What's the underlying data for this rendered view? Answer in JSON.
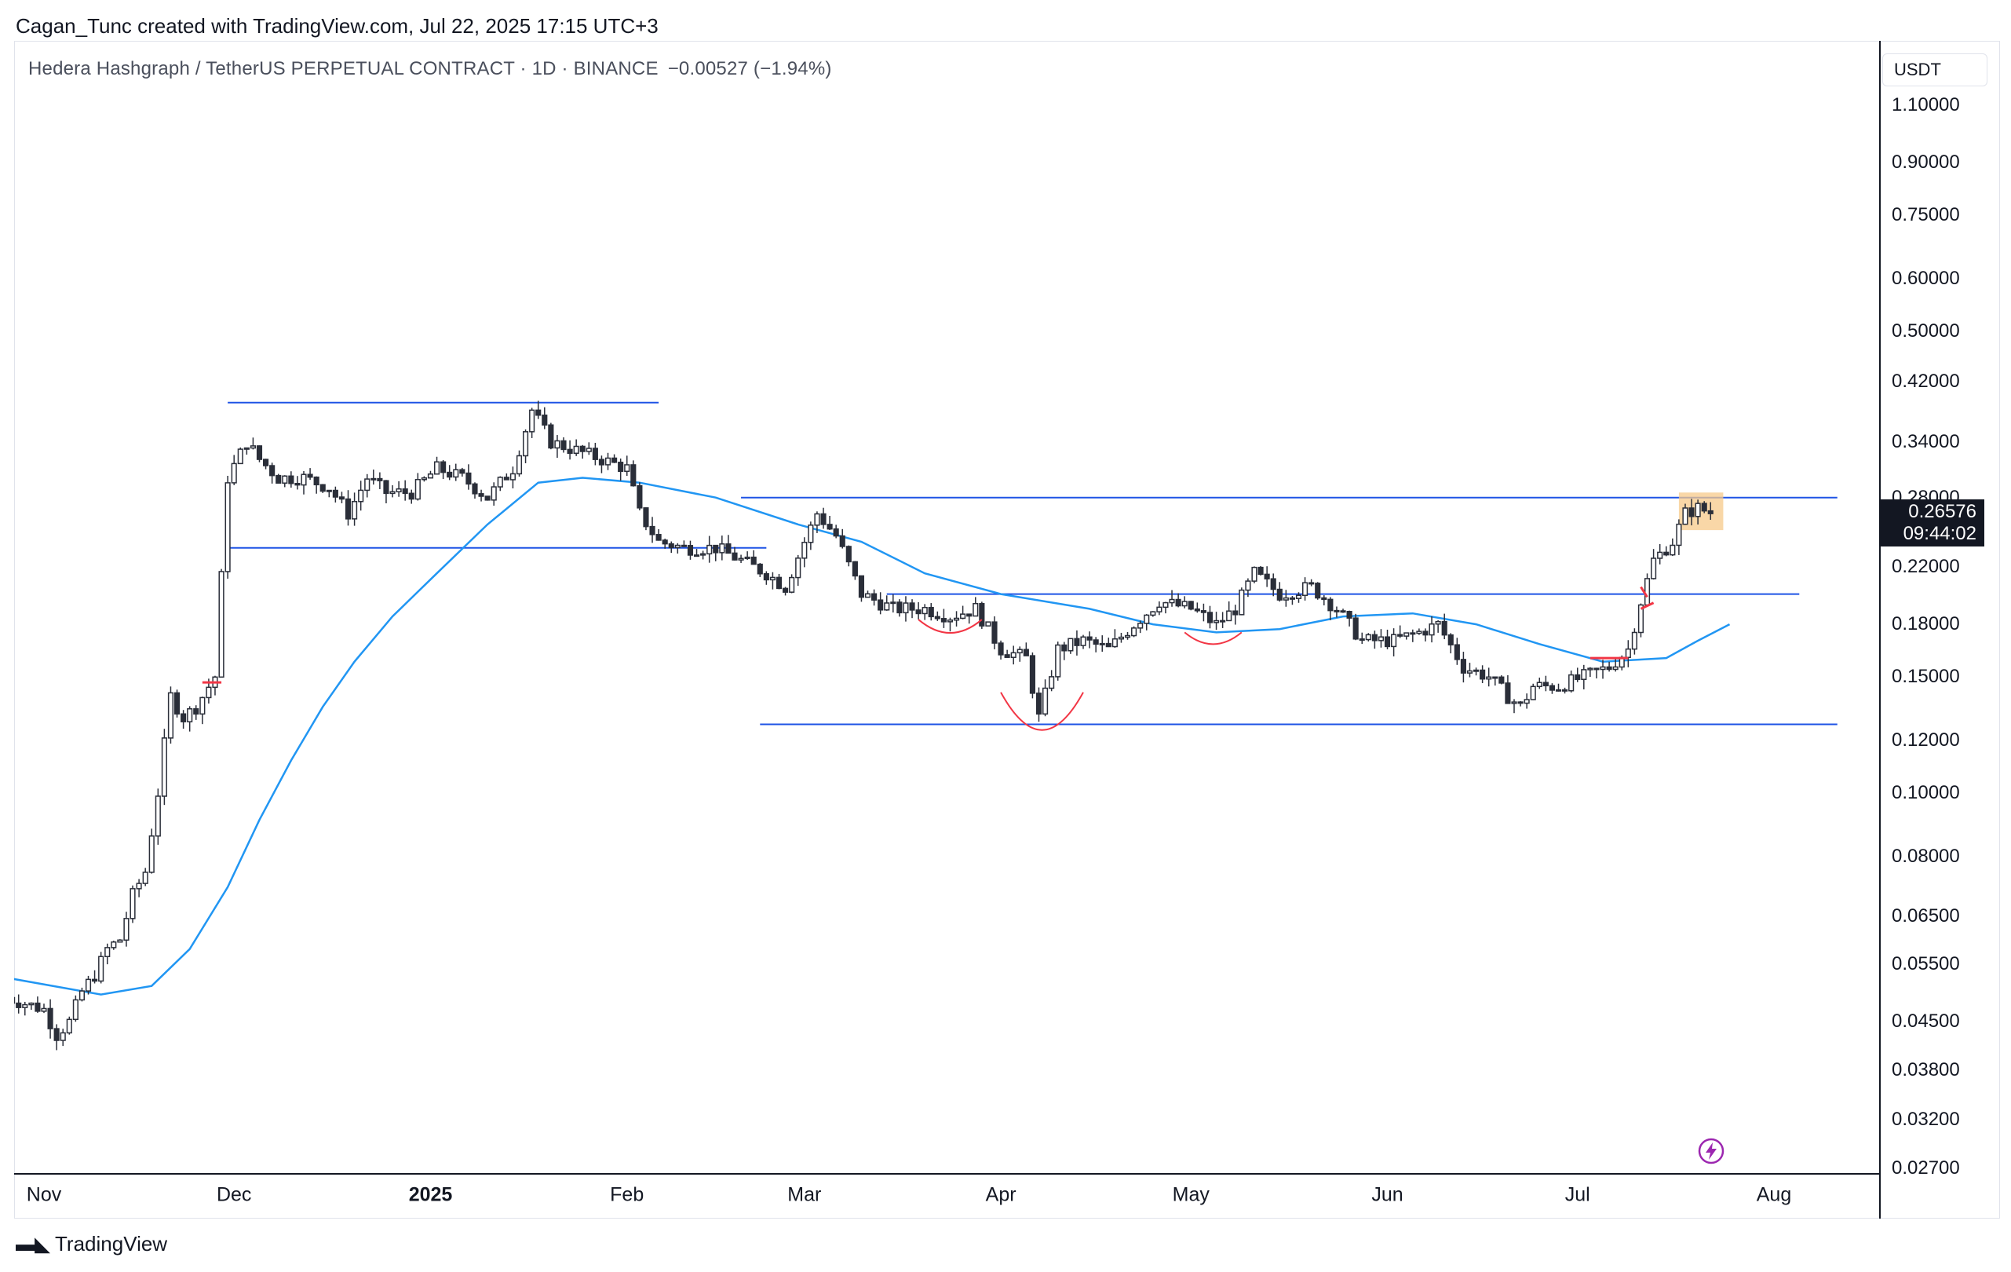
{
  "header": {
    "credit": "Cagan_Tunc created with TradingView.com, Jul 22, 2025 17:15 UTC+3"
  },
  "legend": {
    "symbol": "Hedera Hashgraph / TetherUS PERPETUAL CONTRACT · 1D · BINANCE",
    "change": "−0.00527 (−1.94%)"
  },
  "price_axis": {
    "currency": "USDT",
    "ticks": [
      {
        "label": "1.10000",
        "value": 1.1
      },
      {
        "label": "0.90000",
        "value": 0.9
      },
      {
        "label": "0.75000",
        "value": 0.75
      },
      {
        "label": "0.60000",
        "value": 0.6
      },
      {
        "label": "0.50000",
        "value": 0.5
      },
      {
        "label": "0.42000",
        "value": 0.42
      },
      {
        "label": "0.34000",
        "value": 0.34
      },
      {
        "label": "0.28000",
        "value": 0.28
      },
      {
        "label": "0.22000",
        "value": 0.22
      },
      {
        "label": "0.18000",
        "value": 0.18
      },
      {
        "label": "0.15000",
        "value": 0.15
      },
      {
        "label": "0.12000",
        "value": 0.12
      },
      {
        "label": "0.10000",
        "value": 0.1
      },
      {
        "label": "0.08000",
        "value": 0.08
      },
      {
        "label": "0.06500",
        "value": 0.065
      },
      {
        "label": "0.05500",
        "value": 0.055
      },
      {
        "label": "0.04500",
        "value": 0.045
      },
      {
        "label": "0.03800",
        "value": 0.038
      },
      {
        "label": "0.03200",
        "value": 0.032
      },
      {
        "label": "0.02700",
        "value": 0.027
      }
    ],
    "last_price": "0.26576",
    "countdown": "09:44:02"
  },
  "time_axis": {
    "labels": [
      {
        "label": "Nov",
        "date": "2024-11-01",
        "strong": false
      },
      {
        "label": "Dec",
        "date": "2024-12-01",
        "strong": false
      },
      {
        "label": "2025",
        "date": "2025-01-01",
        "strong": true
      },
      {
        "label": "Feb",
        "date": "2025-02-01",
        "strong": false
      },
      {
        "label": "Mar",
        "date": "2025-03-01",
        "strong": false
      },
      {
        "label": "Apr",
        "date": "2025-04-01",
        "strong": false
      },
      {
        "label": "May",
        "date": "2025-05-01",
        "strong": false
      },
      {
        "label": "Jun",
        "date": "2025-06-01",
        "strong": false
      },
      {
        "label": "Jul",
        "date": "2025-07-01",
        "strong": false
      },
      {
        "label": "Aug",
        "date": "2025-08-01",
        "strong": false
      }
    ]
  },
  "footer": {
    "brand": "TradingView"
  },
  "colors": {
    "candle": "#2a2e39",
    "ma_line": "#2196f3",
    "hline": "#1e53e5",
    "annotation": "#f23645",
    "highlight": "#f7c98a",
    "alert": "#9c27b0"
  },
  "icons": {
    "alert": "lightning-alert-icon",
    "logo": "tradingview-logo-icon"
  },
  "chart_data": {
    "type": "candlestick",
    "title": "Hedera Hashgraph / TetherUS PERPETUAL CONTRACT · 1D · BINANCE",
    "scale": "log",
    "ylim": [
      0.027,
      1.1
    ],
    "xlim": [
      "2024-10-26",
      "2025-08-14"
    ],
    "grid": false,
    "close_path": [
      [
        "2024-10-26",
        0.049
      ],
      [
        "2024-11-01",
        0.047
      ],
      [
        "2024-11-03",
        0.043
      ],
      [
        "2024-11-05",
        0.045
      ],
      [
        "2024-11-07",
        0.05
      ],
      [
        "2024-11-09",
        0.053
      ],
      [
        "2024-11-11",
        0.058
      ],
      [
        "2024-11-13",
        0.06
      ],
      [
        "2024-11-15",
        0.07
      ],
      [
        "2024-11-17",
        0.076
      ],
      [
        "2024-11-19",
        0.1
      ],
      [
        "2024-11-21",
        0.14
      ],
      [
        "2024-11-23",
        0.13
      ],
      [
        "2024-11-25",
        0.135
      ],
      [
        "2024-11-28",
        0.15
      ],
      [
        "2024-11-30",
        0.3
      ],
      [
        "2024-12-03",
        0.34
      ],
      [
        "2024-12-05",
        0.32
      ],
      [
        "2024-12-08",
        0.3
      ],
      [
        "2024-12-12",
        0.3
      ],
      [
        "2024-12-16",
        0.29
      ],
      [
        "2024-12-19",
        0.265
      ],
      [
        "2024-12-22",
        0.3
      ],
      [
        "2024-12-25",
        0.285
      ],
      [
        "2024-12-29",
        0.285
      ],
      [
        "2025-01-02",
        0.31
      ],
      [
        "2025-01-06",
        0.3
      ],
      [
        "2025-01-10",
        0.28
      ],
      [
        "2025-01-14",
        0.31
      ],
      [
        "2025-01-17",
        0.38
      ],
      [
        "2025-01-20",
        0.34
      ],
      [
        "2025-01-24",
        0.33
      ],
      [
        "2025-01-28",
        0.32
      ],
      [
        "2025-02-01",
        0.31
      ],
      [
        "2025-02-03",
        0.265
      ],
      [
        "2025-02-06",
        0.24
      ],
      [
        "2025-02-10",
        0.235
      ],
      [
        "2025-02-15",
        0.235
      ],
      [
        "2025-02-19",
        0.225
      ],
      [
        "2025-02-23",
        0.215
      ],
      [
        "2025-02-26",
        0.205
      ],
      [
        "2025-03-01",
        0.24
      ],
      [
        "2025-03-03",
        0.265
      ],
      [
        "2025-03-06",
        0.245
      ],
      [
        "2025-03-10",
        0.2
      ],
      [
        "2025-03-15",
        0.19
      ],
      [
        "2025-03-20",
        0.19
      ],
      [
        "2025-03-24",
        0.185
      ],
      [
        "2025-03-28",
        0.19
      ],
      [
        "2025-04-01",
        0.165
      ],
      [
        "2025-04-05",
        0.16
      ],
      [
        "2025-04-07",
        0.13
      ],
      [
        "2025-04-10",
        0.165
      ],
      [
        "2025-04-14",
        0.17
      ],
      [
        "2025-04-18",
        0.165
      ],
      [
        "2025-04-22",
        0.18
      ],
      [
        "2025-04-26",
        0.195
      ],
      [
        "2025-05-01",
        0.19
      ],
      [
        "2025-05-05",
        0.18
      ],
      [
        "2025-05-08",
        0.19
      ],
      [
        "2025-05-11",
        0.215
      ],
      [
        "2025-05-15",
        0.2
      ],
      [
        "2025-05-20",
        0.205
      ],
      [
        "2025-05-24",
        0.19
      ],
      [
        "2025-05-28",
        0.17
      ],
      [
        "2025-06-02",
        0.17
      ],
      [
        "2025-06-06",
        0.175
      ],
      [
        "2025-06-09",
        0.18
      ],
      [
        "2025-06-13",
        0.155
      ],
      [
        "2025-06-17",
        0.15
      ],
      [
        "2025-06-20",
        0.14
      ],
      [
        "2025-06-22",
        0.135
      ],
      [
        "2025-06-24",
        0.145
      ],
      [
        "2025-06-28",
        0.145
      ],
      [
        "2025-07-02",
        0.15
      ],
      [
        "2025-07-06",
        0.155
      ],
      [
        "2025-07-09",
        0.165
      ],
      [
        "2025-07-11",
        0.195
      ],
      [
        "2025-07-13",
        0.225
      ],
      [
        "2025-07-16",
        0.24
      ],
      [
        "2025-07-18",
        0.265
      ],
      [
        "2025-07-20",
        0.27
      ],
      [
        "2025-07-22",
        0.26576
      ]
    ],
    "ma_path": [
      [
        "2024-10-26",
        0.0525
      ],
      [
        "2024-11-10",
        0.0495
      ],
      [
        "2024-11-18",
        0.051
      ],
      [
        "2024-11-24",
        0.058
      ],
      [
        "2024-11-30",
        0.072
      ],
      [
        "2024-12-05",
        0.091
      ],
      [
        "2024-12-10",
        0.112
      ],
      [
        "2024-12-15",
        0.135
      ],
      [
        "2024-12-20",
        0.158
      ],
      [
        "2024-12-26",
        0.185
      ],
      [
        "2025-01-02",
        0.215
      ],
      [
        "2025-01-10",
        0.255
      ],
      [
        "2025-01-18",
        0.295
      ],
      [
        "2025-01-25",
        0.3
      ],
      [
        "2025-02-03",
        0.295
      ],
      [
        "2025-02-15",
        0.28
      ],
      [
        "2025-02-28",
        0.255
      ],
      [
        "2025-03-10",
        0.24
      ],
      [
        "2025-03-20",
        0.215
      ],
      [
        "2025-04-01",
        0.2
      ],
      [
        "2025-04-15",
        0.19
      ],
      [
        "2025-04-25",
        0.18
      ],
      [
        "2025-05-05",
        0.175
      ],
      [
        "2025-05-15",
        0.177
      ],
      [
        "2025-05-25",
        0.185
      ],
      [
        "2025-06-05",
        0.187
      ],
      [
        "2025-06-15",
        0.18
      ],
      [
        "2025-06-25",
        0.168
      ],
      [
        "2025-07-05",
        0.158
      ],
      [
        "2025-07-15",
        0.16
      ],
      [
        "2025-07-20",
        0.17
      ],
      [
        "2025-07-25",
        0.18
      ]
    ],
    "horizontal_levels": [
      {
        "price": 0.39,
        "from": "2024-11-30",
        "to": "2025-02-06"
      },
      {
        "price": 0.235,
        "from": "2024-11-30",
        "to": "2025-02-23"
      },
      {
        "price": 0.28,
        "from": "2025-02-19",
        "to": "2025-08-11"
      },
      {
        "price": 0.2,
        "from": "2025-03-14",
        "to": "2025-08-05"
      },
      {
        "price": 0.127,
        "from": "2025-02-22",
        "to": "2025-08-11"
      }
    ],
    "highlight_box": {
      "from": "2025-07-17",
      "to": "2025-07-24",
      "price_low": 0.25,
      "price_high": 0.285
    }
  }
}
